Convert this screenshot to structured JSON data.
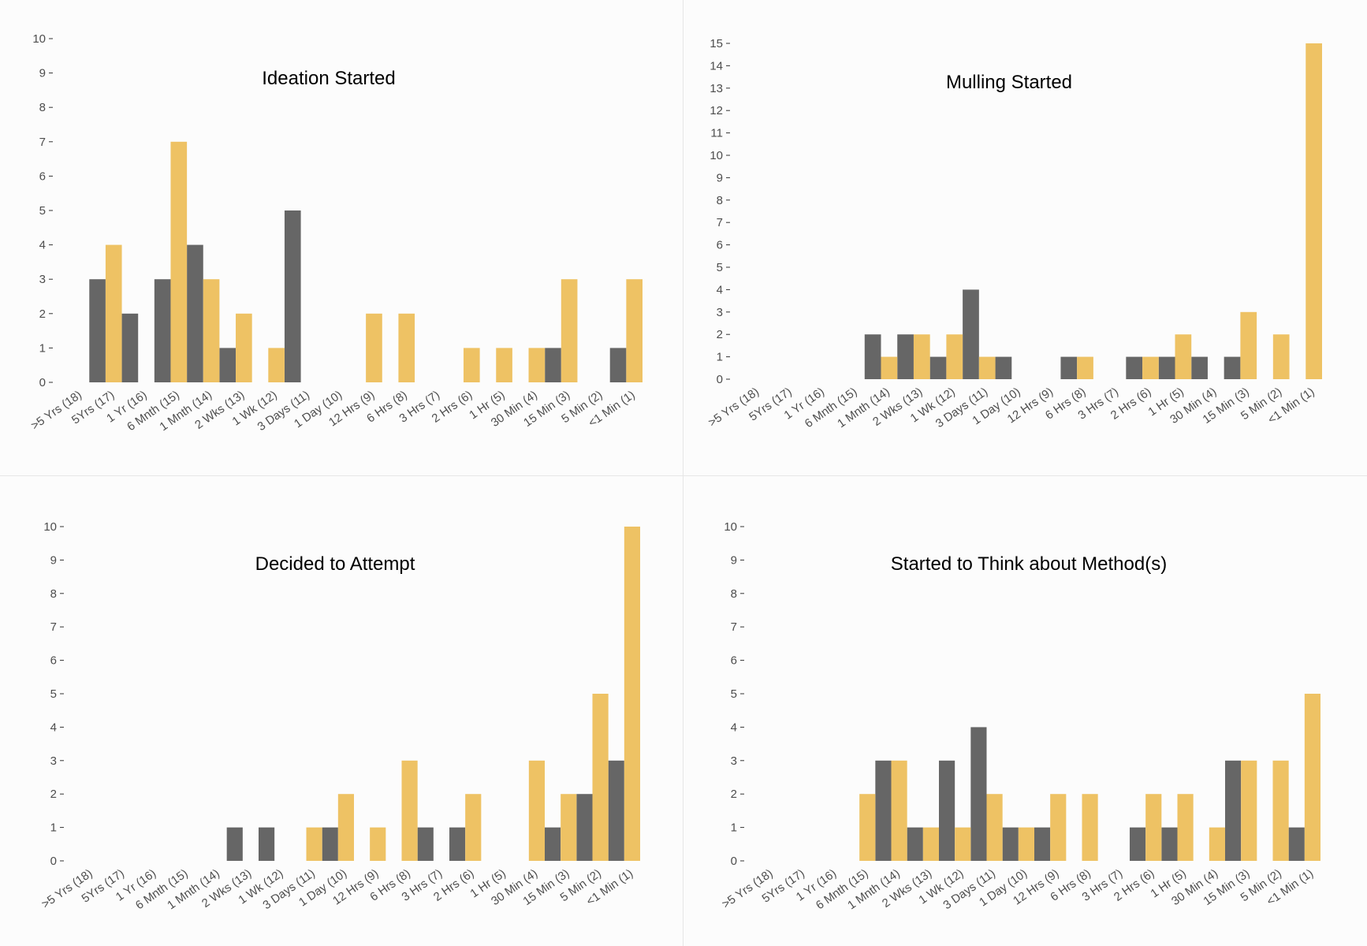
{
  "colors": {
    "dark": "#666666",
    "gold": "#eec264",
    "axis_text": "#4d4d4d",
    "tick": "#333333"
  },
  "chart_data": [
    {
      "type": "bar",
      "title": "Ideation Started",
      "ylim": [
        0,
        10
      ],
      "yticks": [
        "0",
        "1",
        "2",
        "3",
        "4",
        "5",
        "6",
        "7",
        "8",
        "9",
        "10"
      ],
      "categories": [
        ">5 Yrs (18)",
        "5Yrs (17)",
        "1 Yr (16)",
        "6 Mnth (15)",
        "1 Mnth (14)",
        "2 Wks (13)",
        "1 Wk (12)",
        "3 Days (11)",
        "1 Day (10)",
        "12 Hrs (9)",
        "6 Hrs (8)",
        "3 Hrs (7)",
        "2 Hrs (6)",
        "1 Hr (5)",
        "30 Min (4)",
        "15 Min (3)",
        "5 Min (2)",
        "<1 Min (1)"
      ],
      "series": [
        {
          "color": "#666666",
          "values": [
            0,
            3,
            2,
            3,
            4,
            1,
            0,
            5,
            0,
            0,
            0,
            0,
            0,
            0,
            0,
            1,
            0,
            1
          ]
        },
        {
          "color": "#eec264",
          "values": [
            0,
            4,
            0,
            7,
            3,
            2,
            1,
            0,
            0,
            2,
            2,
            0,
            1,
            1,
            1,
            3,
            0,
            3
          ]
        }
      ]
    },
    {
      "type": "bar",
      "title": "Mulling Started",
      "ylim": [
        0,
        15
      ],
      "yticks": [
        "0",
        "1",
        "2",
        "3",
        "4",
        "5",
        "6",
        "7",
        "8",
        "9",
        "10",
        "11",
        "12",
        "13",
        "14",
        "15"
      ],
      "categories": [
        ">5 Yrs (18)",
        "5Yrs (17)",
        "1 Yr (16)",
        "6 Mnth (15)",
        "1 Mnth (14)",
        "2 Wks (13)",
        "1 Wk (12)",
        "3 Days (11)",
        "1 Day (10)",
        "12 Hrs (9)",
        "6 Hrs (8)",
        "3 Hrs (7)",
        "2 Hrs (6)",
        "1 Hr (5)",
        "30 Min (4)",
        "15 Min (3)",
        "5 Min (2)",
        "<1 Min (1)"
      ],
      "series": [
        {
          "color": "#666666",
          "values": [
            0,
            0,
            0,
            0,
            2,
            2,
            1,
            4,
            1,
            0,
            1,
            0,
            1,
            1,
            1,
            1,
            0,
            0
          ]
        },
        {
          "color": "#eec264",
          "values": [
            0,
            0,
            0,
            0,
            1,
            2,
            2,
            1,
            0,
            0,
            1,
            0,
            1,
            2,
            0,
            3,
            2,
            15
          ]
        }
      ]
    },
    {
      "type": "bar",
      "title": "Decided to Attempt",
      "ylim": [
        0,
        10
      ],
      "yticks": [
        "0",
        "1",
        "2",
        "3",
        "4",
        "5",
        "6",
        "7",
        "8",
        "9",
        "10"
      ],
      "categories": [
        ">5 Yrs (18)",
        "5Yrs (17)",
        "1 Yr (16)",
        "6 Mnth (15)",
        "1 Mnth (14)",
        "2 Wks (13)",
        "1 Wk (12)",
        "3 Days (11)",
        "1 Day (10)",
        "12 Hrs (9)",
        "6 Hrs (8)",
        "3 Hrs (7)",
        "2 Hrs (6)",
        "1 Hr (5)",
        "30 Min (4)",
        "15 Min (3)",
        "5 Min (2)",
        "<1 Min (1)"
      ],
      "series": [
        {
          "color": "#666666",
          "values": [
            0,
            0,
            0,
            0,
            0,
            1,
            1,
            0,
            1,
            0,
            0,
            1,
            1,
            0,
            0,
            1,
            2,
            3
          ]
        },
        {
          "color": "#eec264",
          "values": [
            0,
            0,
            0,
            0,
            0,
            0,
            0,
            1,
            2,
            1,
            3,
            0,
            2,
            0,
            3,
            2,
            5,
            10
          ]
        }
      ]
    },
    {
      "type": "bar",
      "title": "Started to Think about Method(s)",
      "ylim": [
        0,
        10
      ],
      "yticks": [
        "0",
        "1",
        "2",
        "3",
        "4",
        "5",
        "6",
        "7",
        "8",
        "9",
        "10"
      ],
      "categories": [
        ">5 Yrs (18)",
        "5Yrs (17)",
        "1 Yr (16)",
        "6 Mnth (15)",
        "1 Mnth (14)",
        "2 Wks (13)",
        "1 Wk (12)",
        "3 Days (11)",
        "1 Day (10)",
        "12 Hrs (9)",
        "6 Hrs (8)",
        "3 Hrs (7)",
        "2 Hrs (6)",
        "1 Hr (5)",
        "30 Min (4)",
        "15 Min (3)",
        "5 Min (2)",
        "<1 Min (1)"
      ],
      "series": [
        {
          "color": "#666666",
          "values": [
            0,
            0,
            0,
            0,
            3,
            1,
            3,
            4,
            1,
            1,
            0,
            0,
            1,
            1,
            0,
            3,
            0,
            1
          ]
        },
        {
          "color": "#eec264",
          "values": [
            0,
            0,
            0,
            2,
            3,
            1,
            1,
            2,
            1,
            2,
            2,
            0,
            2,
            2,
            1,
            3,
            3,
            5
          ]
        }
      ]
    }
  ]
}
